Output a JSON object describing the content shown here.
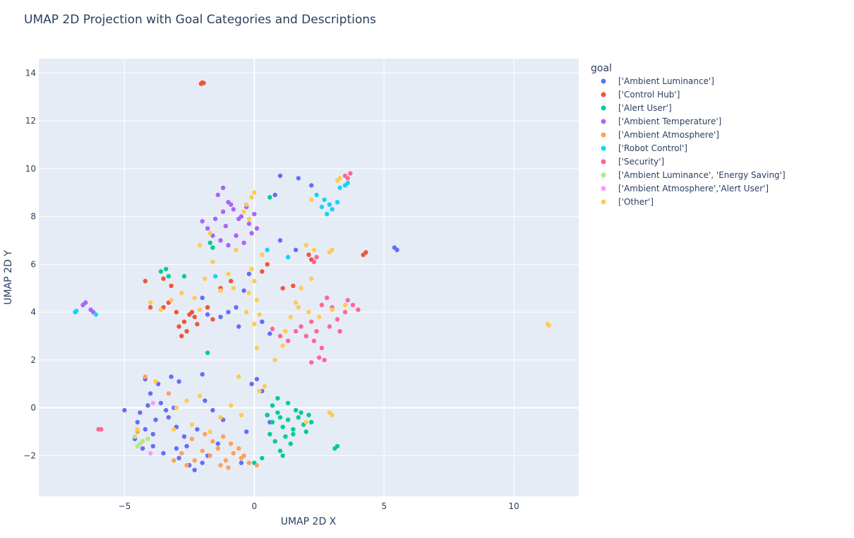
{
  "chart_data": {
    "type": "scatter",
    "title": "UMAP 2D Projection with Goal Categories and Descriptions",
    "xlabel": "UMAP 2D X",
    "ylabel": "UMAP 2D Y",
    "xlim": [
      -8.3,
      12.5
    ],
    "ylim": [
      -3.7,
      14.6
    ],
    "xticks": [
      -5,
      0,
      5,
      10
    ],
    "xtick_labels": [
      "−5",
      "0",
      "5",
      "10"
    ],
    "yticks": [
      -2,
      0,
      2,
      4,
      6,
      8,
      10,
      12,
      14
    ],
    "ytick_labels": [
      "−2",
      "0",
      "2",
      "4",
      "6",
      "8",
      "10",
      "12",
      "14"
    ],
    "grid": true,
    "legend_title": "goal",
    "legend_position": "right",
    "series": [
      {
        "name": "['Ambient Luminance']",
        "color": "#636efa",
        "points": [
          [
            -4.4,
            -0.2
          ],
          [
            -4.1,
            0.1
          ],
          [
            -3.8,
            -0.5
          ],
          [
            -3.6,
            0.2
          ],
          [
            -4.2,
            -0.9
          ],
          [
            -3.9,
            -1.1
          ],
          [
            -3.3,
            -0.4
          ],
          [
            -3.0,
            -0.8
          ],
          [
            -2.7,
            -1.2
          ],
          [
            -4.6,
            -1.3
          ],
          [
            -4.3,
            -1.7
          ],
          [
            -3.5,
            -1.9
          ],
          [
            -2.9,
            -2.1
          ],
          [
            -2.5,
            -2.4
          ],
          [
            -2.3,
            -2.6
          ],
          [
            -4.0,
            0.6
          ],
          [
            -3.7,
            1.0
          ],
          [
            -3.2,
            1.3
          ],
          [
            -2.9,
            1.1
          ],
          [
            -4.2,
            1.2
          ],
          [
            -2.0,
            1.4
          ],
          [
            -1.6,
            -0.1
          ],
          [
            -1.2,
            -0.5
          ],
          [
            -0.5,
            -2.3
          ],
          [
            -5.0,
            -0.1
          ],
          [
            -1.0,
            4.0
          ],
          [
            -1.3,
            3.8
          ],
          [
            -0.7,
            4.2
          ],
          [
            0.6,
            3.1
          ],
          [
            0.3,
            3.6
          ],
          [
            1.7,
            9.6
          ],
          [
            2.2,
            9.3
          ],
          [
            0.8,
            8.9
          ],
          [
            1.0,
            9.7
          ],
          [
            5.4,
            6.7
          ],
          [
            5.5,
            6.6
          ],
          [
            0.1,
            1.2
          ],
          [
            -0.1,
            1.0
          ],
          [
            0.5,
            -0.3
          ],
          [
            0.6,
            -0.6
          ],
          [
            -3.4,
            -0.1
          ],
          [
            -3.1,
            0.0
          ],
          [
            -2.6,
            -1.6
          ],
          [
            -1.8,
            -2.0
          ],
          [
            -1.4,
            -1.5
          ],
          [
            -0.3,
            -1.0
          ],
          [
            -4.5,
            -0.6
          ],
          [
            -3.9,
            -1.6
          ],
          [
            -2.2,
            -0.9
          ],
          [
            -1.9,
            0.3
          ],
          [
            -0.6,
            3.4
          ],
          [
            -1.8,
            3.9
          ],
          [
            -2.0,
            4.6
          ],
          [
            1.0,
            7.0
          ],
          [
            1.6,
            6.6
          ],
          [
            -0.2,
            5.6
          ],
          [
            -0.4,
            4.9
          ],
          [
            0.3,
            0.7
          ],
          [
            -3.0,
            -1.7
          ],
          [
            -2.0,
            -2.3
          ]
        ]
      },
      {
        "name": "['Control Hub']",
        "color": "#EF553B",
        "points": [
          [
            -2.0,
            13.6
          ],
          [
            -2.05,
            13.55
          ],
          [
            -1.95,
            13.58
          ],
          [
            -2.5,
            3.9
          ],
          [
            -2.3,
            3.8
          ],
          [
            -2.7,
            3.6
          ],
          [
            -2.2,
            3.5
          ],
          [
            -2.6,
            3.2
          ],
          [
            -2.8,
            3.0
          ],
          [
            -3.3,
            4.4
          ],
          [
            -3.5,
            4.2
          ],
          [
            -3.0,
            4.0
          ],
          [
            -4.2,
            5.3
          ],
          [
            -3.2,
            5.1
          ],
          [
            -3.5,
            5.4
          ],
          [
            4.2,
            6.4
          ],
          [
            4.3,
            6.5
          ],
          [
            2.1,
            6.4
          ],
          [
            2.2,
            6.2
          ],
          [
            1.5,
            5.1
          ],
          [
            0.5,
            6.0
          ],
          [
            0.3,
            5.7
          ],
          [
            -1.3,
            5.0
          ],
          [
            -1.8,
            4.2
          ],
          [
            -1.6,
            3.7
          ],
          [
            -0.9,
            5.3
          ],
          [
            -2.4,
            4.0
          ],
          [
            -2.9,
            3.4
          ],
          [
            -4.0,
            4.2
          ],
          [
            1.1,
            5.0
          ]
        ]
      },
      {
        "name": "['Alert User']",
        "color": "#00cc96",
        "points": [
          [
            0.5,
            -0.3
          ],
          [
            0.7,
            -0.6
          ],
          [
            0.9,
            -0.2
          ],
          [
            1.1,
            -0.8
          ],
          [
            1.3,
            -0.5
          ],
          [
            1.5,
            -0.9
          ],
          [
            1.7,
            -0.4
          ],
          [
            1.9,
            -0.7
          ],
          [
            2.1,
            -0.3
          ],
          [
            1.2,
            -1.2
          ],
          [
            1.4,
            -1.5
          ],
          [
            1.0,
            -1.8
          ],
          [
            1.1,
            -2.0
          ],
          [
            0.8,
            -1.4
          ],
          [
            0.6,
            -1.1
          ],
          [
            1.6,
            -0.1
          ],
          [
            1.3,
            0.2
          ],
          [
            0.9,
            0.4
          ],
          [
            3.2,
            -1.6
          ],
          [
            3.1,
            -1.7
          ],
          [
            -3.4,
            5.8
          ],
          [
            -3.6,
            5.7
          ],
          [
            -3.3,
            5.5
          ],
          [
            -2.7,
            5.5
          ],
          [
            -1.8,
            2.3
          ],
          [
            -1.7,
            6.9
          ],
          [
            -1.6,
            6.7
          ],
          [
            0.6,
            8.8
          ],
          [
            0.3,
            -2.1
          ],
          [
            0.0,
            -2.3
          ],
          [
            1.5,
            -1.1
          ],
          [
            2.0,
            -1.0
          ],
          [
            0.7,
            0.1
          ],
          [
            1.8,
            -0.2
          ],
          [
            2.2,
            -0.6
          ],
          [
            1.0,
            -0.4
          ]
        ]
      },
      {
        "name": "['Ambient Temperature']",
        "color": "#ab63fa",
        "points": [
          [
            -1.8,
            7.5
          ],
          [
            -1.5,
            7.9
          ],
          [
            -1.2,
            8.2
          ],
          [
            -1.0,
            8.6
          ],
          [
            -0.8,
            8.3
          ],
          [
            -0.5,
            8.0
          ],
          [
            -0.2,
            7.7
          ],
          [
            0.1,
            7.5
          ],
          [
            -1.3,
            7.0
          ],
          [
            -1.0,
            6.8
          ],
          [
            -0.7,
            7.2
          ],
          [
            -0.4,
            6.9
          ],
          [
            -1.4,
            8.9
          ],
          [
            -1.2,
            9.2
          ],
          [
            -0.9,
            8.5
          ],
          [
            -1.6,
            7.2
          ],
          [
            -2.0,
            7.8
          ],
          [
            -0.3,
            8.4
          ],
          [
            0.0,
            8.1
          ],
          [
            -6.6,
            4.3
          ],
          [
            -6.5,
            4.4
          ],
          [
            -6.3,
            4.1
          ],
          [
            -6.2,
            4.0
          ],
          [
            -0.6,
            7.9
          ],
          [
            -1.1,
            7.6
          ],
          [
            -0.1,
            7.3
          ]
        ]
      },
      {
        "name": "['Ambient Atmosphere']",
        "color": "#FFA15A",
        "points": [
          [
            -2.0,
            -1.8
          ],
          [
            -1.7,
            -2.0
          ],
          [
            -1.4,
            -1.7
          ],
          [
            -1.1,
            -2.2
          ],
          [
            -0.8,
            -1.9
          ],
          [
            -0.5,
            -2.1
          ],
          [
            -0.2,
            -2.3
          ],
          [
            0.1,
            -2.4
          ],
          [
            -1.6,
            -1.4
          ],
          [
            -1.2,
            -1.2
          ],
          [
            -0.9,
            -1.5
          ],
          [
            -2.3,
            -2.2
          ],
          [
            -2.6,
            -2.4
          ],
          [
            -2.8,
            -1.9
          ],
          [
            -3.1,
            -2.2
          ],
          [
            -2.4,
            -1.3
          ],
          [
            -1.9,
            -1.1
          ],
          [
            -0.6,
            -1.7
          ],
          [
            -1.3,
            -2.4
          ],
          [
            -4.5,
            -1.0
          ],
          [
            -4.3,
            -1.4
          ],
          [
            -4.2,
            1.3
          ],
          [
            -3.3,
            0.6
          ],
          [
            -0.4,
            -2.0
          ],
          [
            -1.0,
            -2.5
          ]
        ]
      },
      {
        "name": "['Robot Control']",
        "color": "#19d3f3",
        "points": [
          [
            2.4,
            8.9
          ],
          [
            2.7,
            8.7
          ],
          [
            2.9,
            8.5
          ],
          [
            3.0,
            8.3
          ],
          [
            2.8,
            8.1
          ],
          [
            3.2,
            8.6
          ],
          [
            3.3,
            9.2
          ],
          [
            3.5,
            9.3
          ],
          [
            3.6,
            9.4
          ],
          [
            2.6,
            8.4
          ],
          [
            -6.9,
            4.0
          ],
          [
            -6.85,
            4.05
          ],
          [
            -6.1,
            3.9
          ],
          [
            1.3,
            6.3
          ],
          [
            0.5,
            6.6
          ],
          [
            -1.5,
            5.5
          ]
        ]
      },
      {
        "name": "['Security']",
        "color": "#FF6692",
        "points": [
          [
            0.7,
            3.3
          ],
          [
            1.0,
            3.0
          ],
          [
            1.3,
            2.8
          ],
          [
            1.6,
            3.2
          ],
          [
            2.0,
            3.0
          ],
          [
            2.3,
            2.8
          ],
          [
            2.6,
            2.5
          ],
          [
            2.5,
            2.1
          ],
          [
            2.7,
            2.0
          ],
          [
            2.2,
            1.9
          ],
          [
            2.9,
            3.4
          ],
          [
            3.2,
            3.7
          ],
          [
            3.5,
            4.0
          ],
          [
            3.8,
            4.3
          ],
          [
            4.0,
            4.1
          ],
          [
            3.6,
            4.5
          ],
          [
            3.0,
            4.2
          ],
          [
            2.6,
            4.3
          ],
          [
            2.2,
            3.6
          ],
          [
            1.8,
            3.4
          ],
          [
            3.5,
            9.7
          ],
          [
            3.7,
            9.8
          ],
          [
            3.6,
            9.6
          ],
          [
            -6.0,
            -0.9
          ],
          [
            -5.9,
            -0.9
          ],
          [
            2.4,
            6.3
          ],
          [
            2.3,
            6.1
          ],
          [
            2.4,
            3.2
          ],
          [
            3.3,
            3.2
          ],
          [
            2.8,
            4.6
          ]
        ]
      },
      {
        "name": "['Ambient Luminance', 'Energy Saving']",
        "color": "#B6E880",
        "points": [
          [
            -4.5,
            -1.6
          ],
          [
            -4.4,
            -1.5
          ],
          [
            -4.3,
            -1.4
          ],
          [
            -4.1,
            -1.3
          ],
          [
            -4.6,
            -1.2
          ]
        ]
      },
      {
        "name": "['Ambient Atmosphere','Alert User']",
        "color": "#FF97FF",
        "points": [
          [
            -3.9,
            0.2
          ],
          [
            -4.0,
            -1.9
          ]
        ]
      },
      {
        "name": "['Other']",
        "color": "#FECB52",
        "points": [
          [
            -0.3,
            8.5
          ],
          [
            -0.1,
            8.8
          ],
          [
            0.0,
            9.0
          ],
          [
            -0.4,
            8.2
          ],
          [
            -0.2,
            7.9
          ],
          [
            -0.1,
            5.8
          ],
          [
            0.0,
            5.3
          ],
          [
            -0.2,
            4.8
          ],
          [
            0.1,
            4.5
          ],
          [
            -0.3,
            4.0
          ],
          [
            0.0,
            3.5
          ],
          [
            0.2,
            3.9
          ],
          [
            -2.1,
            4.1
          ],
          [
            -2.3,
            4.6
          ],
          [
            -2.8,
            4.8
          ],
          [
            -3.2,
            4.5
          ],
          [
            -3.6,
            4.1
          ],
          [
            -4.0,
            4.4
          ],
          [
            -1.9,
            5.4
          ],
          [
            -1.6,
            6.1
          ],
          [
            -1.3,
            4.9
          ],
          [
            -1.0,
            5.6
          ],
          [
            -0.8,
            5.0
          ],
          [
            1.7,
            4.2
          ],
          [
            1.4,
            3.8
          ],
          [
            1.2,
            3.2
          ],
          [
            1.1,
            2.6
          ],
          [
            2.9,
            6.5
          ],
          [
            3.0,
            6.6
          ],
          [
            2.3,
            6.6
          ],
          [
            2.0,
            6.8
          ],
          [
            2.2,
            5.4
          ],
          [
            1.8,
            5.0
          ],
          [
            2.5,
            3.8
          ],
          [
            3.0,
            4.1
          ],
          [
            3.5,
            4.3
          ],
          [
            2.2,
            8.7
          ],
          [
            3.2,
            9.5
          ],
          [
            3.3,
            9.6
          ],
          [
            11.3,
            3.5
          ],
          [
            11.35,
            3.45
          ],
          [
            -3.1,
            -0.9
          ],
          [
            -2.4,
            -0.7
          ],
          [
            -1.7,
            -1.0
          ],
          [
            -1.3,
            -0.4
          ],
          [
            -0.9,
            0.1
          ],
          [
            -0.5,
            -0.3
          ],
          [
            -2.1,
            0.5
          ],
          [
            -2.6,
            0.3
          ],
          [
            -3.0,
            0.0
          ],
          [
            0.2,
            0.7
          ],
          [
            0.4,
            0.9
          ],
          [
            2.9,
            -0.2
          ],
          [
            3.0,
            -0.3
          ],
          [
            2.0,
            -0.6
          ],
          [
            -2.1,
            6.8
          ],
          [
            -1.7,
            7.3
          ],
          [
            0.3,
            6.4
          ],
          [
            -0.7,
            6.6
          ],
          [
            0.1,
            2.5
          ],
          [
            0.8,
            2.0
          ],
          [
            -4.5,
            -0.9
          ],
          [
            -3.8,
            1.1
          ],
          [
            -0.6,
            1.3
          ],
          [
            1.6,
            4.4
          ],
          [
            2.1,
            4.0
          ]
        ]
      }
    ]
  }
}
